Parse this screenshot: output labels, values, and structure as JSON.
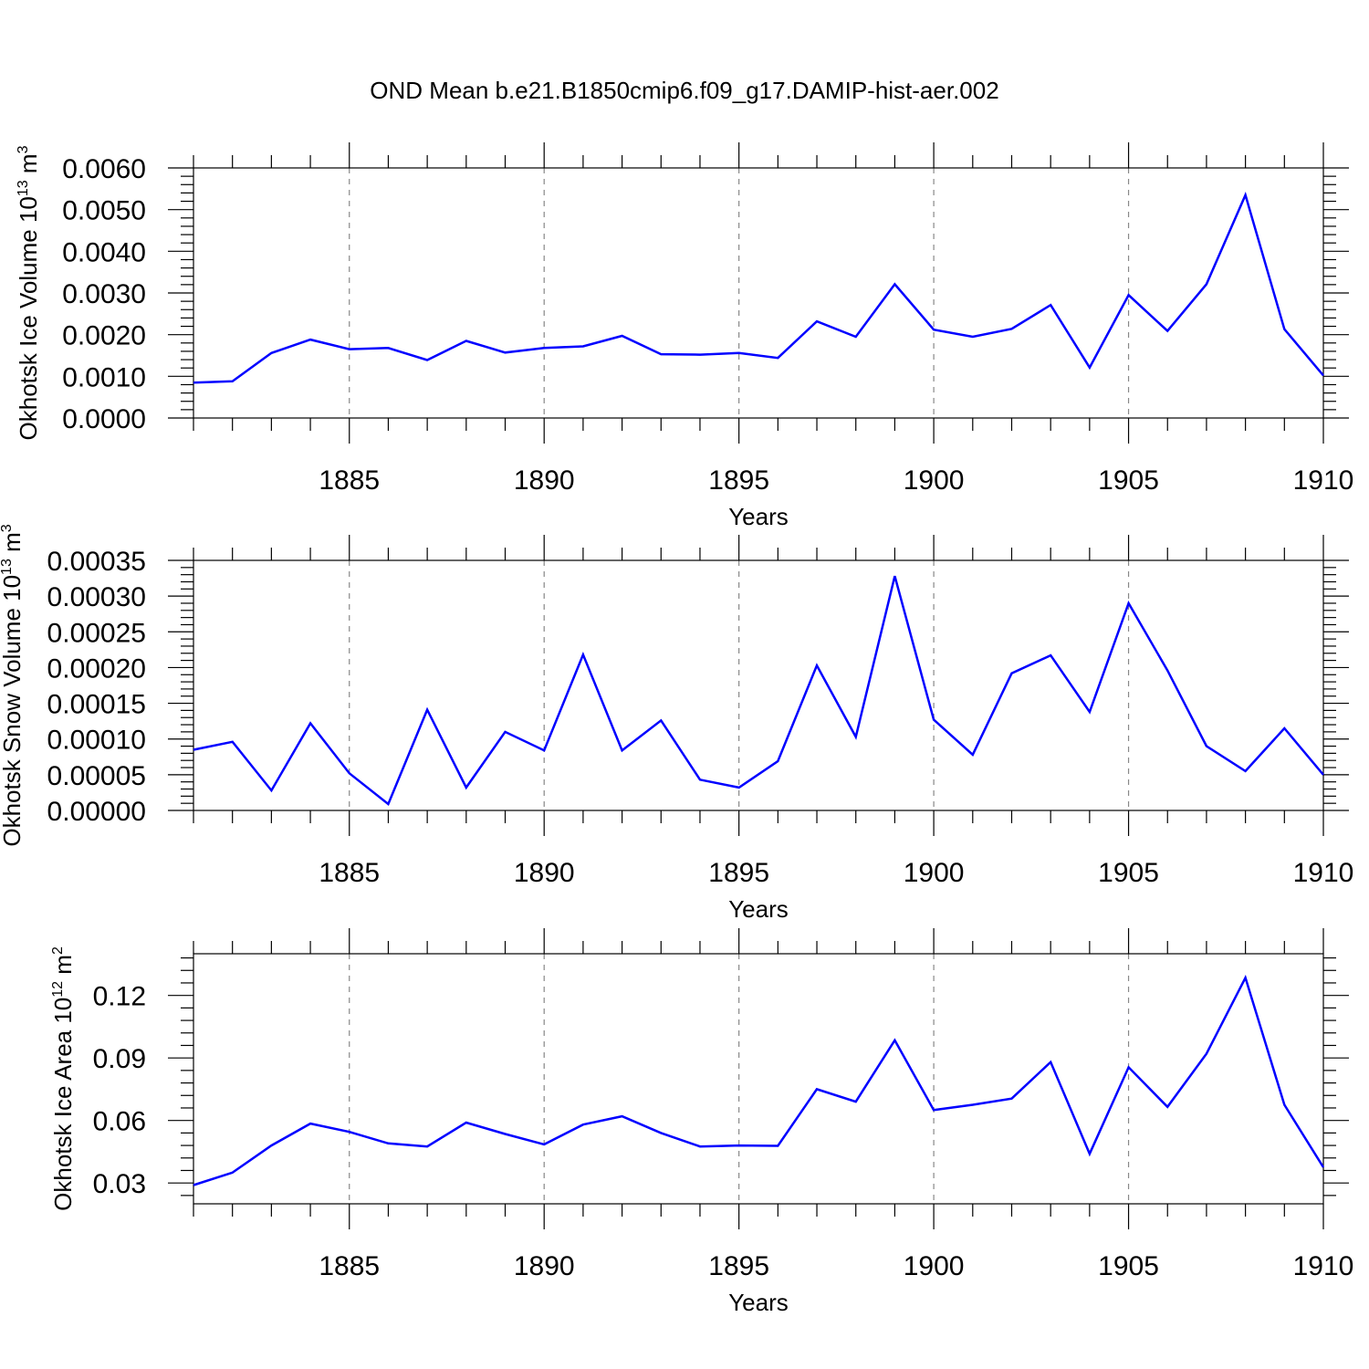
{
  "title": "OND Mean b.e21.B1850cmip6.f09_g17.DAMIP-hist-aer.002",
  "chart_data": [
    {
      "type": "line",
      "ylabel": "Okhotsk Ice Volume 10",
      "ylabel_exp": "13",
      "ylabel_unit": "m",
      "ylabel_unit_exp": "3",
      "xlabel": "Years",
      "xlim": [
        1881,
        1910
      ],
      "ylim": [
        0,
        0.006
      ],
      "x_ticks": [
        1885,
        1890,
        1895,
        1900,
        1905,
        1910
      ],
      "x_tick_labels": [
        "1885",
        "1890",
        "1895",
        "1900",
        "1905",
        "1910"
      ],
      "y_ticks": [
        0,
        0.001,
        0.002,
        0.003,
        0.004,
        0.005,
        0.006
      ],
      "y_tick_labels": [
        "0.0000",
        "0.0010",
        "0.0020",
        "0.0030",
        "0.0040",
        "0.0050",
        "0.0060"
      ],
      "x": [
        1881,
        1882,
        1883,
        1884,
        1885,
        1886,
        1887,
        1888,
        1889,
        1890,
        1891,
        1892,
        1893,
        1894,
        1895,
        1896,
        1897,
        1898,
        1899,
        1900,
        1901,
        1902,
        1903,
        1904,
        1905,
        1906,
        1907,
        1908,
        1909,
        1910
      ],
      "values": [
        0.00085,
        0.00088,
        0.00156,
        0.00188,
        0.00165,
        0.00168,
        0.00139,
        0.00185,
        0.00157,
        0.00168,
        0.00172,
        0.00197,
        0.00153,
        0.00152,
        0.00156,
        0.00144,
        0.00232,
        0.00195,
        0.00321,
        0.00212,
        0.00195,
        0.00214,
        0.00271,
        0.00121,
        0.00295,
        0.00209,
        0.00321,
        0.00535,
        0.00213,
        0.00102
      ]
    },
    {
      "type": "line",
      "ylabel": "Okhotsk Snow Volume 10",
      "ylabel_exp": "13",
      "ylabel_unit": "m",
      "ylabel_unit_exp": "3",
      "xlabel": "Years",
      "xlim": [
        1881,
        1910
      ],
      "ylim": [
        0,
        0.00035
      ],
      "x_ticks": [
        1885,
        1890,
        1895,
        1900,
        1905,
        1910
      ],
      "x_tick_labels": [
        "1885",
        "1890",
        "1895",
        "1900",
        "1905",
        "1910"
      ],
      "y_ticks": [
        0,
        5e-05,
        0.0001,
        0.00015,
        0.0002,
        0.00025,
        0.0003,
        0.00035
      ],
      "y_tick_labels": [
        "0.00000",
        "0.00005",
        "0.00010",
        "0.00015",
        "0.00020",
        "0.00025",
        "0.00030",
        "0.00035"
      ],
      "x": [
        1881,
        1882,
        1883,
        1884,
        1885,
        1886,
        1887,
        1888,
        1889,
        1890,
        1891,
        1892,
        1893,
        1894,
        1895,
        1896,
        1897,
        1898,
        1899,
        1900,
        1901,
        1902,
        1903,
        1904,
        1905,
        1906,
        1907,
        1908,
        1909,
        1910
      ],
      "values": [
        8.5e-05,
        9.6e-05,
        2.8e-05,
        0.000122,
        5.2e-05,
        9e-06,
        0.000141,
        3.2e-05,
        0.00011,
        8.4e-05,
        0.000218,
        8.4e-05,
        0.000126,
        4.3e-05,
        3.2e-05,
        6.9e-05,
        0.000203,
        0.000103,
        0.000328,
        0.000127,
        7.8e-05,
        0.000192,
        0.000217,
        0.000138,
        0.00029,
        0.000196,
        9e-05,
        5.5e-05,
        0.000115,
        5e-05
      ]
    },
    {
      "type": "line",
      "ylabel": "Okhotsk Ice Area 10",
      "ylabel_exp": "12",
      "ylabel_unit": "m",
      "ylabel_unit_exp": "2",
      "xlabel": "Years",
      "xlim": [
        1881,
        1910
      ],
      "ylim": [
        0.02,
        0.14
      ],
      "x_ticks": [
        1885,
        1890,
        1895,
        1900,
        1905,
        1910
      ],
      "x_tick_labels": [
        "1885",
        "1890",
        "1895",
        "1900",
        "1905",
        "1910"
      ],
      "y_ticks": [
        0.03,
        0.06,
        0.09,
        0.12
      ],
      "y_tick_labels": [
        "0.03",
        "0.06",
        "0.09",
        "0.12"
      ],
      "x": [
        1881,
        1882,
        1883,
        1884,
        1885,
        1886,
        1887,
        1888,
        1889,
        1890,
        1891,
        1892,
        1893,
        1894,
        1895,
        1896,
        1897,
        1898,
        1899,
        1900,
        1901,
        1902,
        1903,
        1904,
        1905,
        1906,
        1907,
        1908,
        1909,
        1910
      ],
      "values": [
        0.029,
        0.035,
        0.048,
        0.0585,
        0.0545,
        0.049,
        0.0475,
        0.059,
        0.0535,
        0.0485,
        0.058,
        0.062,
        0.054,
        0.0475,
        0.048,
        0.0478,
        0.075,
        0.069,
        0.0985,
        0.065,
        0.0675,
        0.0705,
        0.088,
        0.044,
        0.0855,
        0.0665,
        0.092,
        0.1285,
        0.0675,
        0.0375
      ]
    }
  ]
}
